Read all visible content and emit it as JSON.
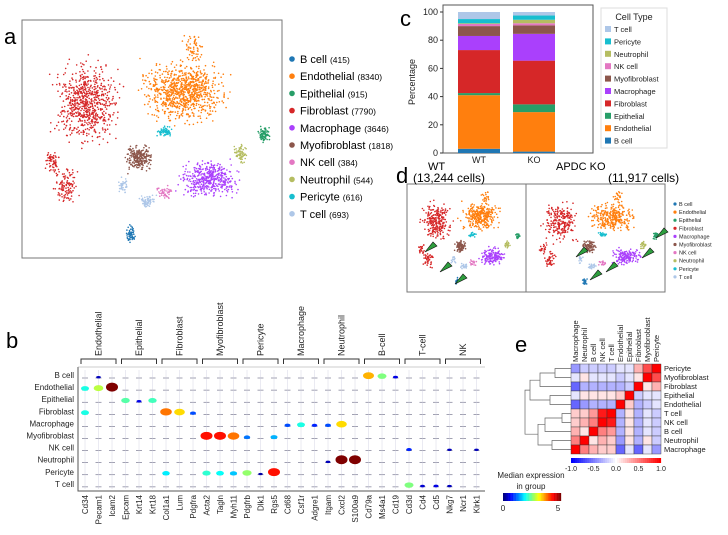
{
  "panel_labels": {
    "a": "a",
    "b": "b",
    "c": "c",
    "d": "d",
    "e": "e"
  },
  "colors": {
    "B cell": "#1f77b4",
    "Endothelial": "#ff7f0e",
    "Epithelial": "#279e68",
    "Fibroblast": "#d62728",
    "Macrophage": "#aa40fc",
    "Myofibroblast": "#8c564b",
    "NK cell": "#e377c2",
    "Neutrophil": "#b5bd61",
    "Pericyte": "#17becf",
    "T cell": "#aec7e8",
    "arrow": "#2e9e3e"
  },
  "chart_data": [
    {
      "panel": "a",
      "type": "scatter",
      "legend": [
        {
          "name": "B cell",
          "count": "(415)"
        },
        {
          "name": "Endothelial",
          "count": "(8340)"
        },
        {
          "name": "Epithelial",
          "count": "(915)"
        },
        {
          "name": "Fibroblast",
          "count": "(7790)"
        },
        {
          "name": "Macrophage",
          "count": "(3646)"
        },
        {
          "name": "Myofibroblast",
          "count": "(1818)"
        },
        {
          "name": "NK cell",
          "count": "(384)"
        },
        {
          "name": "Neutrophil",
          "count": "(544)"
        },
        {
          "name": "Pericyte",
          "count": "(616)"
        },
        {
          "name": "T cell",
          "count": "(693)"
        }
      ],
      "legend_placement": "right"
    },
    {
      "panel": "c",
      "type": "bar",
      "stacked": true,
      "categories": [
        "WT",
        "KO"
      ],
      "ylabel": "Percentage",
      "ylim": [
        0,
        100
      ],
      "yticks": [
        0,
        20,
        40,
        60,
        80,
        100
      ],
      "legend_title": "Cell Type",
      "legend_placement": "right",
      "series": [
        {
          "name": "B cell",
          "values": [
            3,
            1
          ]
        },
        {
          "name": "Endothelial",
          "values": [
            38,
            28
          ]
        },
        {
          "name": "Epithelial",
          "values": [
            1.5,
            5.5
          ]
        },
        {
          "name": "Fibroblast",
          "values": [
            30.5,
            31
          ]
        },
        {
          "name": "Macrophage",
          "values": [
            10,
            19
          ]
        },
        {
          "name": "Myofibroblast",
          "values": [
            7,
            6
          ]
        },
        {
          "name": "NK cell",
          "values": [
            1.5,
            1.5
          ]
        },
        {
          "name": "Neutrophil",
          "values": [
            0.5,
            2.5
          ]
        },
        {
          "name": "Pericyte",
          "values": [
            3,
            3
          ]
        },
        {
          "name": "T cell",
          "values": [
            5,
            2.5
          ]
        }
      ]
    },
    {
      "panel": "d",
      "type": "scatter",
      "titles": [
        {
          "name": "WT",
          "cells": "(13,244 cells)"
        },
        {
          "name": "APDC KO",
          "cells": "(11,917 cells)"
        }
      ],
      "legend": [
        "B cell",
        "Endothelial",
        "Epithelial",
        "Fibroblast",
        "Macrophage",
        "Myofibroblast",
        "NK cell",
        "Neutrophil",
        "Pericyte",
        "T cell"
      ]
    },
    {
      "panel": "b",
      "type": "violin",
      "groups": [
        {
          "name": "Endothelial",
          "genes": [
            "Cd34",
            "Pecam1",
            "Icam2"
          ]
        },
        {
          "name": "Epithelial",
          "genes": [
            "Epcam",
            "Krt14",
            "Krt18"
          ]
        },
        {
          "name": "Fibroblast",
          "genes": [
            "Col1a1",
            "Lum",
            "Pdgfra"
          ]
        },
        {
          "name": "Myofibroblast",
          "genes": [
            "Acta2",
            "Tagln",
            "Myh11"
          ]
        },
        {
          "name": "Pericyte",
          "genes": [
            "Pdgfrb",
            "Dlk1",
            "Rgs5"
          ]
        },
        {
          "name": "Macrophage",
          "genes": [
            "Cd68",
            "Csf1r",
            "Adgre1"
          ]
        },
        {
          "name": "Neutrophil",
          "genes": [
            "Itgam",
            "Cxcl2",
            "S100a9"
          ]
        },
        {
          "name": "B-cell",
          "genes": [
            "Cd79a",
            "Ms4a1",
            "Cd19"
          ]
        },
        {
          "name": "T-cell",
          "genes": [
            "Cd3d",
            "Cd4",
            "Cd5"
          ]
        },
        {
          "name": "NK",
          "genes": [
            "Nkg7",
            "Ncr1",
            "Klrk1"
          ]
        }
      ],
      "rows": [
        "B cell",
        "Endothelial",
        "Epithelial",
        "Fibroblast",
        "Macrophage",
        "Myofibroblast",
        "NK cell",
        "Neutrophil",
        "Pericyte",
        "T cell"
      ],
      "median_expression": [
        [
          "B cell",
          "Cd79a",
          3.5
        ],
        [
          "B cell",
          "Ms4a1",
          2.5
        ],
        [
          "B cell",
          "Cd19",
          0.5
        ],
        [
          "B cell",
          "Pecam1",
          0.3
        ],
        [
          "Endothelial",
          "Cd34",
          2
        ],
        [
          "Endothelial",
          "Pecam1",
          2.8
        ],
        [
          "Endothelial",
          "Icam2",
          5
        ],
        [
          "Epithelial",
          "Epcam",
          2.3
        ],
        [
          "Epithelial",
          "Krt14",
          0.5
        ],
        [
          "Epithelial",
          "Krt18",
          2.2
        ],
        [
          "Fibroblast",
          "Cd34",
          2
        ],
        [
          "Fibroblast",
          "Col1a1",
          3.8
        ],
        [
          "Fibroblast",
          "Lum",
          3.3
        ],
        [
          "Fibroblast",
          "Pdgfra",
          1
        ],
        [
          "Macrophage",
          "Cd68",
          1
        ],
        [
          "Macrophage",
          "Csf1r",
          2
        ],
        [
          "Macrophage",
          "Adgre1",
          0.8
        ],
        [
          "Macrophage",
          "Itgam",
          1
        ],
        [
          "Macrophage",
          "Cxcl2",
          3.3
        ],
        [
          "Myofibroblast",
          "Acta2",
          4.3
        ],
        [
          "Myofibroblast",
          "Tagln",
          4.3
        ],
        [
          "Myofibroblast",
          "Myh11",
          3.8
        ],
        [
          "Myofibroblast",
          "Pdgfrb",
          1.2
        ],
        [
          "Myofibroblast",
          "Rgs5",
          1.5
        ],
        [
          "NK cell",
          "Cd3d",
          0.8
        ],
        [
          "NK cell",
          "Nkg7",
          0.3
        ],
        [
          "NK cell",
          "Klrk1",
          0.3
        ],
        [
          "Neutrophil",
          "Itgam",
          0.3
        ],
        [
          "Neutrophil",
          "Cxcl2",
          5
        ],
        [
          "Neutrophil",
          "S100a9",
          5.5
        ],
        [
          "Pericyte",
          "Col1a1",
          1.8
        ],
        [
          "Pericyte",
          "Acta2",
          2.1
        ],
        [
          "Pericyte",
          "Tagln",
          1.9
        ],
        [
          "Pericyte",
          "Myh11",
          1.6
        ],
        [
          "Pericyte",
          "Pdgfrb",
          2.6
        ],
        [
          "Pericyte",
          "Dlk1",
          0.2
        ],
        [
          "Pericyte",
          "Rgs5",
          4.3
        ],
        [
          "T cell",
          "Cd3d",
          2.5
        ],
        [
          "T cell",
          "Cd4",
          0.4
        ],
        [
          "T cell",
          "Cd5",
          0.5
        ],
        [
          "T cell",
          "Nkg7",
          0.3
        ]
      ],
      "colorbar": {
        "label1": "Median expression",
        "label2": "in group",
        "ticks": [
          "0",
          "5"
        ],
        "range": [
          0,
          5
        ],
        "colormap": "jet"
      }
    },
    {
      "panel": "e",
      "type": "heatmap",
      "rows": [
        "Pericyte",
        "Myofibroblast",
        "Fibroblast",
        "Epithelial",
        "Endothelial",
        "T cell",
        "NK cell",
        "B cell",
        "Neutrophil",
        "Macrophage"
      ],
      "columns": [
        "Macrophage",
        "Neutrophil",
        "B cell",
        "NK cell",
        "T cell",
        "Endothelial",
        "Epithelial",
        "Fibroblast",
        "Myofibroblast",
        "Pericyte"
      ],
      "values": [
        [
          -0.4,
          -0.2,
          -0.2,
          -0.2,
          -0.2,
          -0.1,
          -0.1,
          0.3,
          0.7,
          1
        ],
        [
          -0.1,
          0.1,
          -0.1,
          -0.1,
          -0.1,
          -0.2,
          -0.1,
          0.1,
          1,
          0.7
        ],
        [
          -0.6,
          -0.3,
          -0.3,
          -0.3,
          -0.3,
          -0.3,
          -0.2,
          1,
          0.1,
          0.3
        ],
        [
          -0.1,
          0.1,
          0.1,
          0.1,
          0.1,
          0.2,
          1,
          -0.2,
          -0.1,
          -0.1
        ],
        [
          -0.6,
          -0.4,
          -0.3,
          -0.3,
          -0.3,
          1,
          0.2,
          -0.3,
          -0.2,
          -0.1
        ],
        [
          0.2,
          0.2,
          0.4,
          0.9,
          1,
          -0.3,
          0.1,
          -0.3,
          -0.1,
          -0.2
        ],
        [
          0.2,
          0.3,
          0.5,
          1,
          0.9,
          -0.3,
          0.1,
          -0.3,
          -0.1,
          -0.2
        ],
        [
          0.3,
          0.1,
          1,
          0.5,
          0.4,
          -0.3,
          0.1,
          -0.3,
          -0.1,
          -0.2
        ],
        [
          0.5,
          1,
          0.1,
          0.3,
          0.2,
          -0.4,
          0.1,
          -0.3,
          0.1,
          -0.2
        ],
        [
          1,
          0.5,
          0.3,
          0.2,
          0.2,
          -0.6,
          -0.1,
          -0.6,
          -0.1,
          -0.4
        ]
      ],
      "colorbar": {
        "ticks": [
          "-1.0",
          "-0.5",
          "0.0",
          "0.5",
          "1.0"
        ],
        "range": [
          -1,
          1
        ],
        "colormap": "bwr"
      },
      "dendrogram": "left"
    }
  ]
}
